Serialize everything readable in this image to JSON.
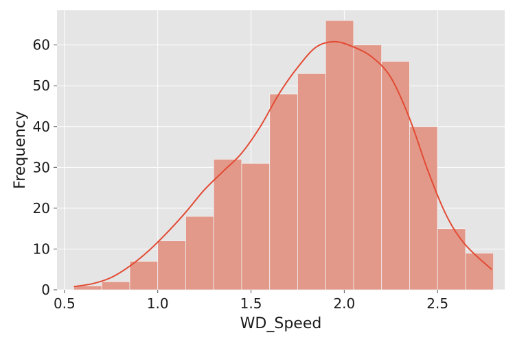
{
  "chart_data": {
    "type": "bar",
    "title": "",
    "xlabel": "WD_Speed",
    "ylabel": "Frequency",
    "xlim": [
      0.46,
      2.86
    ],
    "ylim": [
      0,
      68.5
    ],
    "grid": true,
    "xticks": [
      {
        "value": 0.5,
        "label": "0.5"
      },
      {
        "value": 1.0,
        "label": "1.0"
      },
      {
        "value": 1.5,
        "label": "1.5"
      },
      {
        "value": 2.0,
        "label": "2.0"
      },
      {
        "value": 2.5,
        "label": "2.5"
      }
    ],
    "yticks": [
      {
        "value": 0,
        "label": "0"
      },
      {
        "value": 10,
        "label": "10"
      },
      {
        "value": 20,
        "label": "20"
      },
      {
        "value": 30,
        "label": "30"
      },
      {
        "value": 40,
        "label": "40"
      },
      {
        "value": 50,
        "label": "50"
      },
      {
        "value": 60,
        "label": "60"
      }
    ],
    "bins": [
      {
        "x0": 0.55,
        "x1": 0.7,
        "count": 1
      },
      {
        "x0": 0.7,
        "x1": 0.85,
        "count": 2
      },
      {
        "x0": 0.85,
        "x1": 1.0,
        "count": 7
      },
      {
        "x0": 1.0,
        "x1": 1.15,
        "count": 12
      },
      {
        "x0": 1.15,
        "x1": 1.3,
        "count": 18
      },
      {
        "x0": 1.3,
        "x1": 1.45,
        "count": 32
      },
      {
        "x0": 1.45,
        "x1": 1.6,
        "count": 31
      },
      {
        "x0": 1.6,
        "x1": 1.75,
        "count": 48
      },
      {
        "x0": 1.75,
        "x1": 1.9,
        "count": 53
      },
      {
        "x0": 1.9,
        "x1": 2.05,
        "count": 66
      },
      {
        "x0": 2.05,
        "x1": 2.2,
        "count": 60
      },
      {
        "x0": 2.2,
        "x1": 2.35,
        "count": 56
      },
      {
        "x0": 2.35,
        "x1": 2.5,
        "count": 40
      },
      {
        "x0": 2.5,
        "x1": 2.65,
        "count": 15
      },
      {
        "x0": 2.65,
        "x1": 2.8,
        "count": 9
      }
    ],
    "kde": {
      "x": [
        0.55,
        0.65,
        0.75,
        0.85,
        0.95,
        1.05,
        1.15,
        1.25,
        1.35,
        1.45,
        1.55,
        1.65,
        1.75,
        1.85,
        1.95,
        2.05,
        2.15,
        2.25,
        2.35,
        2.45,
        2.55,
        2.65,
        2.79
      ],
      "y": [
        0.8,
        1.5,
        3.0,
        5.8,
        9.5,
        14.0,
        19.0,
        24.5,
        29.0,
        33.5,
        40.0,
        48.0,
        54.5,
        59.5,
        60.8,
        59.5,
        57.0,
        52.0,
        42.0,
        29.0,
        18.0,
        11.0,
        5.0
      ]
    },
    "colors": {
      "background": "#e5e5e5",
      "grid": "#ffffff",
      "bar_fill": "#e2998a",
      "bar_edge": "#f2f2f2",
      "kde_line": "#e24a33"
    }
  }
}
